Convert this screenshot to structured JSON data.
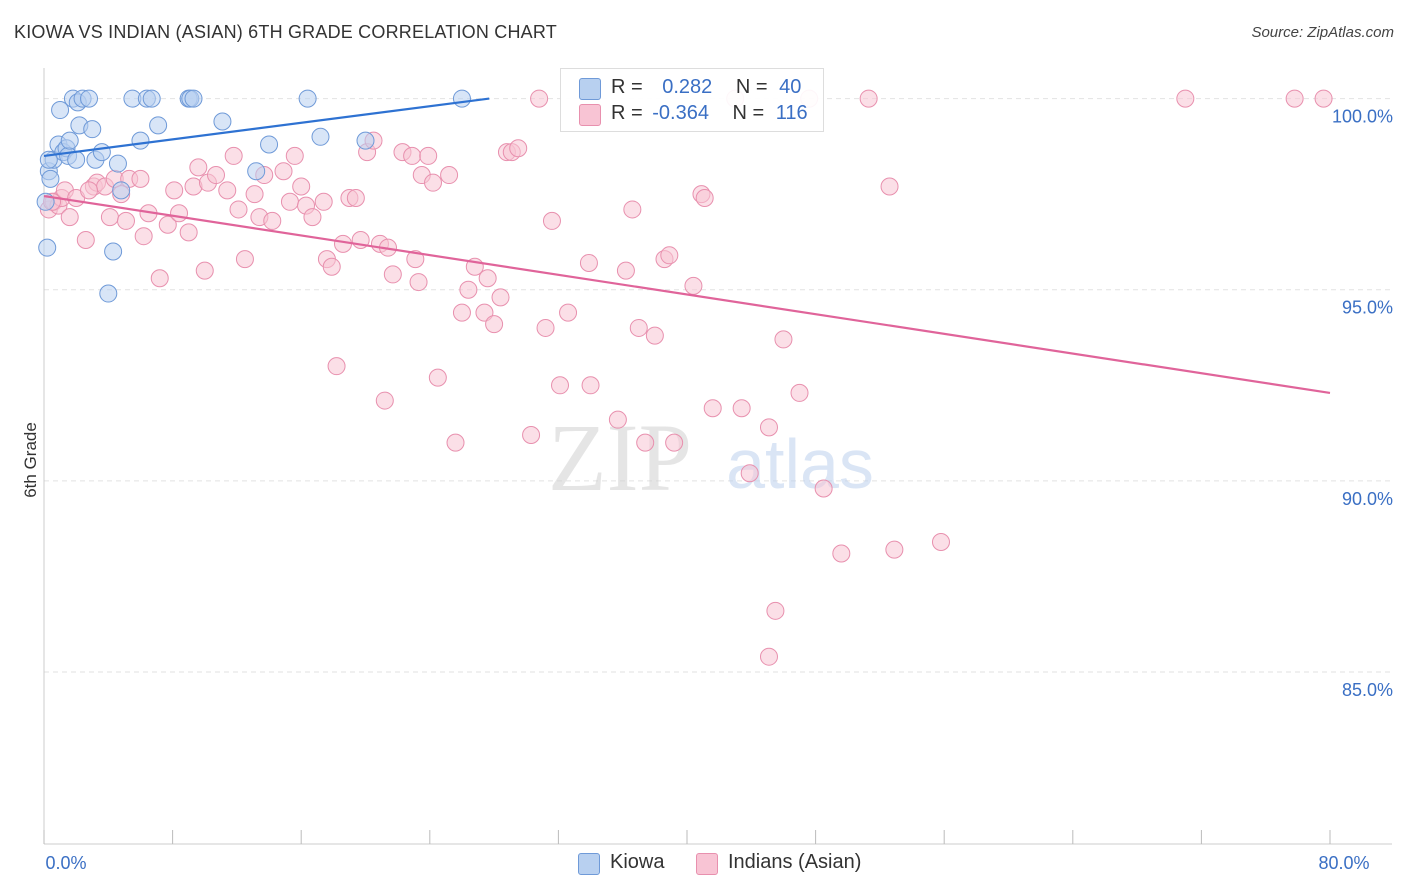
{
  "title": "KIOWA VS INDIAN (ASIAN) 6TH GRADE CORRELATION CHART",
  "source": "Source: ZipAtlas.com",
  "watermark": {
    "zip": "ZIP",
    "atlas": "atlas"
  },
  "legend": {
    "kiowa": {
      "r_label": "R =",
      "r_value": "0.282",
      "n_label": "N =",
      "n_value": "40"
    },
    "indian": {
      "r_label": "R =",
      "r_value": "-0.364",
      "n_label": "N =",
      "n_value": "116"
    }
  },
  "bottom_legend": {
    "kiowa": "Kiowa",
    "indian": "Indians (Asian)"
  },
  "colors": {
    "kiowa_fill": "#b8d0f0",
    "kiowa_stroke": "#6f9ad8",
    "kiowa_line": "#2e72d2",
    "indian_fill": "#f8c4d4",
    "indian_stroke": "#e890ae",
    "indian_line": "#e0649a",
    "tick_label": "#3a6fc4",
    "grid": "#e2e2e2"
  },
  "chart_data": {
    "type": "scatter",
    "title": "KIOWA VS INDIAN (ASIAN) 6TH GRADE CORRELATION CHART",
    "xlabel": "",
    "ylabel": "6th Grade",
    "xlim": [
      0,
      80
    ],
    "ylim": [
      80.5,
      100.8
    ],
    "x_tick_labels": [
      {
        "value": 0,
        "label": "0.0%"
      },
      {
        "value": 80,
        "label": "80.0%"
      }
    ],
    "y_tick_labels": [
      {
        "value": 100,
        "label": "100.0%"
      },
      {
        "value": 95,
        "label": "95.0%"
      },
      {
        "value": 90,
        "label": "90.0%"
      },
      {
        "value": 85,
        "label": "85.0%"
      }
    ],
    "series": [
      {
        "name": "Kiowa",
        "r": 0.282,
        "n": 40,
        "trend": {
          "x": [
            0,
            27.7
          ],
          "y": [
            98.5,
            100.0
          ]
        },
        "points": [
          [
            0.2,
            96.1
          ],
          [
            0.3,
            98.1
          ],
          [
            0.4,
            97.9
          ],
          [
            0.6,
            98.4
          ],
          [
            0.9,
            98.8
          ],
          [
            1.0,
            99.7
          ],
          [
            1.2,
            98.6
          ],
          [
            1.4,
            98.7
          ],
          [
            1.5,
            98.5
          ],
          [
            1.6,
            98.9
          ],
          [
            1.8,
            100.0
          ],
          [
            2.0,
            98.4
          ],
          [
            2.1,
            99.9
          ],
          [
            2.4,
            100.0
          ],
          [
            2.2,
            99.3
          ],
          [
            2.8,
            100.0
          ],
          [
            3.0,
            99.2
          ],
          [
            3.2,
            98.4
          ],
          [
            3.6,
            98.6
          ],
          [
            4.3,
            96.0
          ],
          [
            4.6,
            98.3
          ],
          [
            4.0,
            94.9
          ],
          [
            4.8,
            97.6
          ],
          [
            5.5,
            100.0
          ],
          [
            6.0,
            98.9
          ],
          [
            6.4,
            100.0
          ],
          [
            6.7,
            100.0
          ],
          [
            7.1,
            99.3
          ],
          [
            9.0,
            100.0
          ],
          [
            9.1,
            100.0
          ],
          [
            9.3,
            100.0
          ],
          [
            11.1,
            99.4
          ],
          [
            13.2,
            98.1
          ],
          [
            14.0,
            98.8
          ],
          [
            16.4,
            100.0
          ],
          [
            17.2,
            99.0
          ],
          [
            20.0,
            98.9
          ],
          [
            26.0,
            100.0
          ],
          [
            0.3,
            98.4
          ],
          [
            0.1,
            97.3
          ]
        ]
      },
      {
        "name": "Indians (Asian)",
        "r": -0.364,
        "n": 116,
        "trend": {
          "x": [
            0,
            80
          ],
          "y": [
            97.45,
            92.3
          ]
        },
        "points": [
          [
            0.3,
            97.1
          ],
          [
            0.6,
            97.3
          ],
          [
            0.9,
            97.2
          ],
          [
            1.1,
            97.4
          ],
          [
            1.3,
            97.6
          ],
          [
            1.6,
            96.9
          ],
          [
            2.6,
            96.3
          ],
          [
            3.1,
            97.7
          ],
          [
            3.3,
            97.8
          ],
          [
            3.8,
            97.7
          ],
          [
            4.1,
            96.9
          ],
          [
            4.4,
            97.9
          ],
          [
            4.8,
            97.5
          ],
          [
            5.1,
            96.8
          ],
          [
            5.3,
            97.9
          ],
          [
            6.0,
            97.9
          ],
          [
            6.2,
            96.4
          ],
          [
            6.5,
            97.0
          ],
          [
            7.2,
            95.3
          ],
          [
            7.7,
            96.7
          ],
          [
            8.1,
            97.6
          ],
          [
            8.4,
            97.0
          ],
          [
            9.0,
            96.5
          ],
          [
            9.3,
            97.7
          ],
          [
            9.6,
            98.2
          ],
          [
            10.0,
            95.5
          ],
          [
            10.2,
            97.8
          ],
          [
            10.7,
            98.0
          ],
          [
            11.4,
            97.6
          ],
          [
            11.8,
            98.5
          ],
          [
            12.1,
            97.1
          ],
          [
            12.5,
            95.8
          ],
          [
            13.1,
            97.5
          ],
          [
            13.4,
            96.9
          ],
          [
            13.7,
            98.0
          ],
          [
            14.2,
            96.8
          ],
          [
            14.9,
            98.1
          ],
          [
            15.3,
            97.3
          ],
          [
            15.6,
            98.5
          ],
          [
            16.0,
            97.7
          ],
          [
            16.3,
            97.2
          ],
          [
            16.7,
            96.9
          ],
          [
            17.4,
            97.3
          ],
          [
            17.6,
            95.8
          ],
          [
            17.9,
            95.6
          ],
          [
            18.2,
            93.0
          ],
          [
            18.6,
            96.2
          ],
          [
            19.0,
            97.4
          ],
          [
            19.4,
            97.4
          ],
          [
            19.7,
            96.3
          ],
          [
            20.1,
            98.6
          ],
          [
            20.5,
            98.9
          ],
          [
            20.9,
            96.2
          ],
          [
            21.2,
            92.1
          ],
          [
            21.4,
            96.1
          ],
          [
            21.7,
            95.4
          ],
          [
            22.3,
            98.6
          ],
          [
            22.9,
            98.5
          ],
          [
            23.1,
            95.8
          ],
          [
            23.3,
            95.2
          ],
          [
            23.5,
            98.0
          ],
          [
            23.9,
            98.5
          ],
          [
            24.2,
            97.8
          ],
          [
            24.5,
            92.7
          ],
          [
            25.2,
            98.0
          ],
          [
            25.6,
            91.0
          ],
          [
            26.0,
            94.4
          ],
          [
            26.4,
            95.0
          ],
          [
            26.8,
            95.6
          ],
          [
            27.4,
            94.4
          ],
          [
            27.6,
            95.3
          ],
          [
            28.0,
            94.1
          ],
          [
            28.4,
            94.8
          ],
          [
            28.8,
            98.6
          ],
          [
            29.1,
            98.6
          ],
          [
            29.5,
            98.7
          ],
          [
            30.3,
            91.2
          ],
          [
            30.8,
            100.0
          ],
          [
            31.2,
            94.0
          ],
          [
            31.6,
            96.8
          ],
          [
            32.1,
            92.5
          ],
          [
            32.6,
            94.4
          ],
          [
            34.0,
            92.5
          ],
          [
            33.9,
            95.7
          ],
          [
            35.7,
            91.6
          ],
          [
            36.2,
            95.5
          ],
          [
            36.6,
            97.1
          ],
          [
            37.0,
            94.0
          ],
          [
            37.4,
            91.0
          ],
          [
            38.0,
            93.8
          ],
          [
            38.6,
            95.8
          ],
          [
            38.9,
            95.9
          ],
          [
            39.2,
            91.0
          ],
          [
            40.4,
            95.1
          ],
          [
            40.9,
            97.5
          ],
          [
            41.1,
            97.4
          ],
          [
            41.6,
            91.9
          ],
          [
            43.0,
            100.0
          ],
          [
            43.4,
            91.9
          ],
          [
            43.9,
            90.2
          ],
          [
            45.1,
            91.4
          ],
          [
            45.5,
            86.6
          ],
          [
            45.1,
            85.4
          ],
          [
            46.0,
            93.7
          ],
          [
            47.0,
            92.3
          ],
          [
            47.6,
            100.0
          ],
          [
            48.5,
            89.8
          ],
          [
            49.6,
            88.1
          ],
          [
            51.3,
            100.0
          ],
          [
            52.6,
            97.7
          ],
          [
            52.9,
            88.2
          ],
          [
            55.8,
            88.4
          ],
          [
            71.0,
            100.0
          ],
          [
            77.8,
            100.0
          ],
          [
            79.6,
            100.0
          ],
          [
            0.5,
            97.3
          ],
          [
            2.0,
            97.4
          ],
          [
            2.8,
            97.6
          ]
        ]
      }
    ]
  }
}
